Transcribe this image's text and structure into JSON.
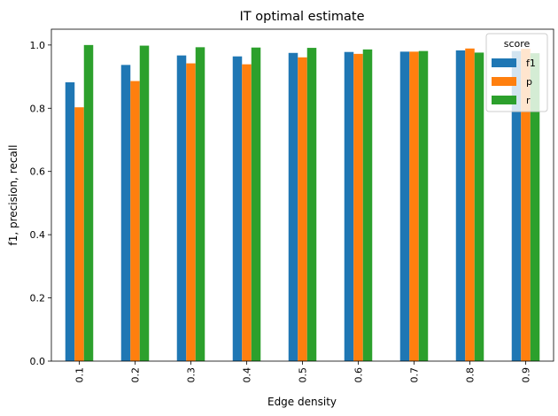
{
  "chart_data": {
    "type": "bar",
    "title": "IT optimal estimate",
    "xlabel": "Edge density",
    "ylabel": "f1, precision, recall",
    "categories": [
      "0.1",
      "0.2",
      "0.3",
      "0.4",
      "0.5",
      "0.6",
      "0.7",
      "0.8",
      "0.9"
    ],
    "series": [
      {
        "name": "f1",
        "color": "#1f77b4",
        "values": [
          0.882,
          0.937,
          0.967,
          0.964,
          0.975,
          0.978,
          0.979,
          0.983,
          0.981
        ]
      },
      {
        "name": "p",
        "color": "#ff7f0e",
        "values": [
          0.803,
          0.886,
          0.942,
          0.939,
          0.961,
          0.972,
          0.979,
          0.989,
          0.988
        ]
      },
      {
        "name": "r",
        "color": "#2ca02c",
        "values": [
          1.0,
          0.998,
          0.993,
          0.992,
          0.991,
          0.986,
          0.981,
          0.976,
          0.974
        ]
      }
    ],
    "ylim": [
      0,
      1.05
    ],
    "yticks": [
      "0.0",
      "0.2",
      "0.4",
      "0.6",
      "0.8",
      "1.0"
    ],
    "grid": false,
    "legend": {
      "title": "score",
      "placement": "top-right"
    }
  }
}
